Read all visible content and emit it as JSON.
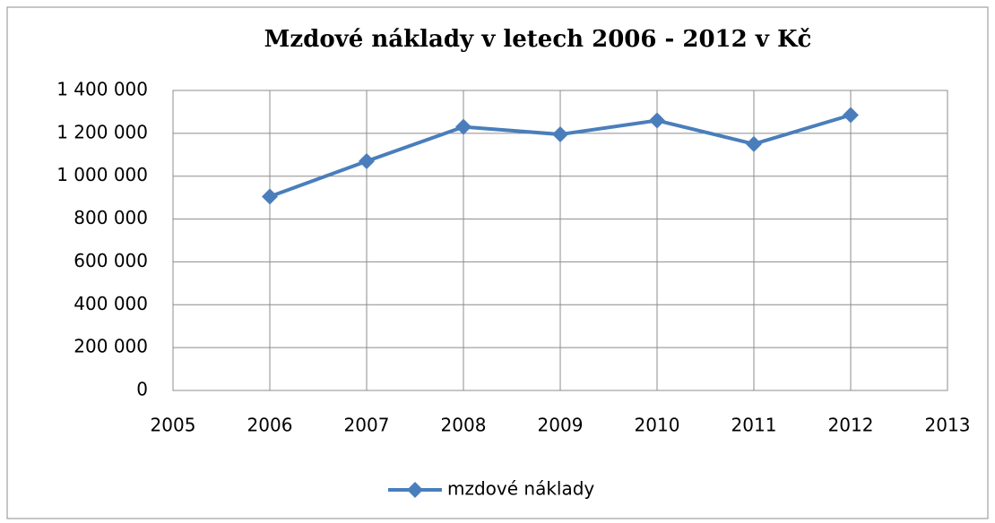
{
  "chart_data": {
    "type": "line",
    "title": "Mzdové náklady v letech 2006 - 2012 v Kč",
    "x": [
      2006,
      2007,
      2008,
      2009,
      2010,
      2011,
      2012
    ],
    "series": [
      {
        "name": "mzdové náklady",
        "color": "#4a7ebb",
        "values": [
          905000,
          1070000,
          1230000,
          1195000,
          1260000,
          1150000,
          1285000
        ]
      }
    ],
    "xlim": [
      2005,
      2013
    ],
    "xticks": [
      2005,
      2006,
      2007,
      2008,
      2009,
      2010,
      2011,
      2012,
      2013
    ],
    "ylim": [
      0,
      1400000
    ],
    "yticks": [
      0,
      {
        "value": 200000,
        "label": "200 000"
      },
      {
        "value": 400000,
        "label": "400 000"
      },
      {
        "value": 600000,
        "label": "600 000"
      },
      {
        "value": 800000,
        "label": "800 000"
      },
      {
        "value": 1000000,
        "label": "1 000 000"
      },
      {
        "value": 1200000,
        "label": "1 200 000"
      },
      {
        "value": 1400000,
        "label": "1 400 000"
      }
    ],
    "grid": true,
    "legend": "bottom"
  }
}
